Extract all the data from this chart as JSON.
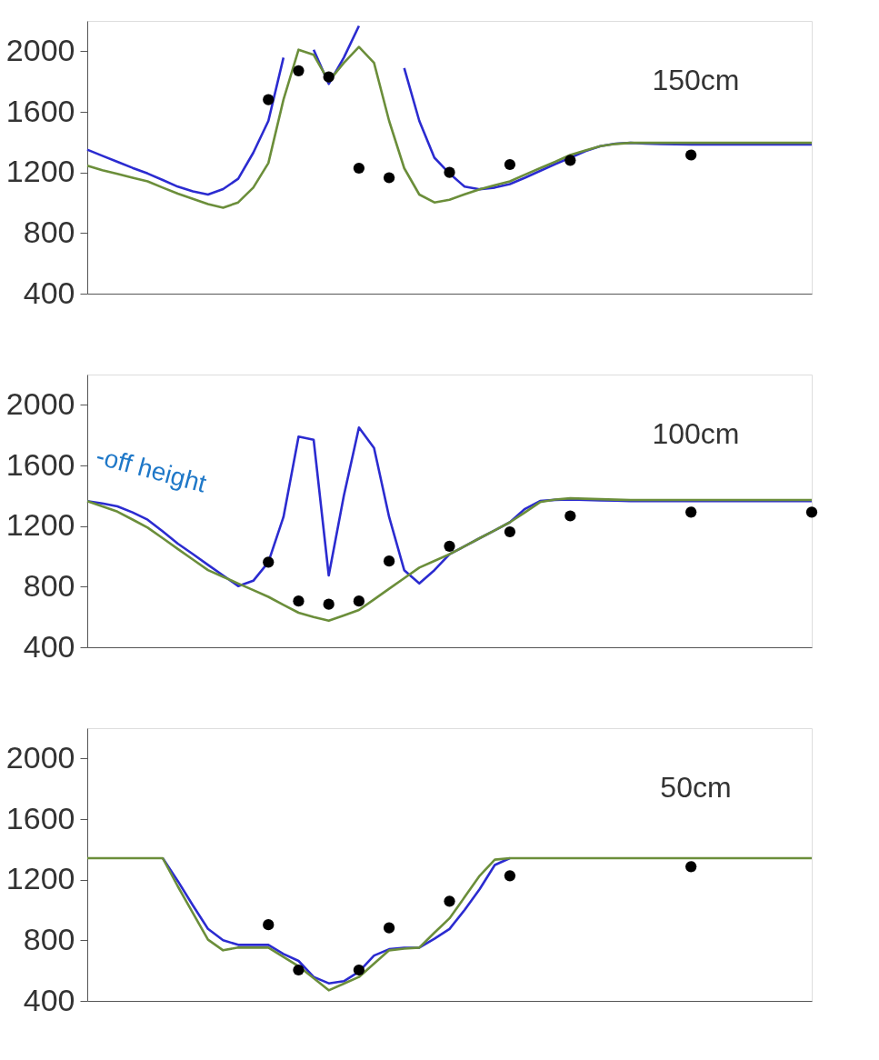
{
  "chart_data": [
    {
      "type": "line",
      "categories": [
        null,
        null,
        null,
        null,
        null,
        null,
        null,
        null,
        null,
        null,
        null,
        null,
        null,
        null,
        null,
        null,
        null,
        null,
        null,
        null,
        null,
        null,
        null,
        null,
        null,
        null,
        null,
        null,
        null,
        null,
        null,
        null,
        null,
        null,
        null,
        null,
        null,
        null,
        null,
        null,
        null,
        null,
        null,
        null,
        null,
        null,
        null,
        null,
        null
      ],
      "ylim": [
        400,
        2200
      ],
      "yticks": [
        400,
        800,
        1200,
        1600,
        2000
      ],
      "tick_labels": "y",
      "annotations": [
        "150cm"
      ],
      "series": [
        {
          "type": "line",
          "color": "#2b2bd0",
          "values": [
            1350,
            1310,
            1270,
            1230,
            1193,
            1150,
            1106,
            1075,
            1054,
            1090,
            1158,
            1330,
            1540,
            1958,
            null,
            2010,
            1784,
            1958,
            2167,
            null,
            null,
            1889,
            1540,
            1297,
            1193,
            1106,
            1089,
            1100,
            1123,
            1165,
            1210,
            1255,
            1297,
            1340,
            1374,
            1390,
            1395,
            1390,
            1388,
            1386,
            1384,
            1384,
            1384,
            1384,
            1384,
            1384,
            1384,
            1384,
            1384
          ]
        },
        {
          "type": "line",
          "color": "#6b8e3a",
          "values": [
            1245,
            1215,
            1190,
            1165,
            1141,
            1100,
            1060,
            1025,
            991,
            967,
            1002,
            1100,
            1262,
            1680,
            2010,
            1976,
            1802,
            1923,
            2028,
            1923,
            1540,
            1228,
            1054,
            1002,
            1019,
            1055,
            1089,
            1115,
            1141,
            1185,
            1228,
            1270,
            1315,
            1345,
            1374,
            1388,
            1395,
            1395,
            1395,
            1395,
            1395,
            1395,
            1395,
            1395,
            1395,
            1395,
            1395,
            1395,
            1395
          ]
        },
        {
          "type": "scatter",
          "color": "#000000",
          "marker": "circle",
          "values": [
            null,
            null,
            null,
            null,
            null,
            null,
            null,
            null,
            null,
            null,
            null,
            null,
            1680,
            null,
            1871,
            null,
            1830,
            null,
            1228,
            null,
            1165,
            null,
            null,
            null,
            1200,
            null,
            null,
            null,
            1252,
            null,
            null,
            null,
            1280,
            null,
            null,
            null,
            null,
            null,
            null,
            null,
            1315,
            null,
            null,
            null,
            null,
            null,
            null,
            null,
            null
          ]
        }
      ]
    },
    {
      "type": "line",
      "categories": [
        null,
        null,
        null,
        null,
        null,
        null,
        null,
        null,
        null,
        null,
        null,
        null,
        null,
        null,
        null,
        null,
        null,
        null,
        null,
        null,
        null,
        null,
        null,
        null,
        null,
        null,
        null,
        null,
        null,
        null,
        null,
        null,
        null,
        null,
        null,
        null,
        null,
        null,
        null,
        null,
        null,
        null,
        null,
        null,
        null,
        null,
        null,
        null,
        null
      ],
      "ylim": [
        400,
        2200
      ],
      "yticks": [
        400,
        800,
        1200,
        1600,
        2000
      ],
      "tick_labels": "y",
      "annotations": [
        "100cm",
        "-off height"
      ],
      "series": [
        {
          "type": "line",
          "color": "#2b2bd0",
          "values": [
            1365,
            1350,
            1330,
            1290,
            1242,
            1165,
            1084,
            1015,
            944,
            874,
            804,
            839,
            962,
            1260,
            1790,
            1769,
            874,
            1400,
            1850,
            1716,
            1260,
            909,
            821,
            909,
            1014,
            1067,
            1120,
            1172,
            1225,
            1313,
            1365,
            1373,
            1376,
            1372,
            1370,
            1368,
            1365,
            1365,
            1365,
            1365,
            1365,
            1365,
            1365,
            1365,
            1365,
            1365,
            1365,
            1365,
            1365
          ]
        },
        {
          "type": "line",
          "color": "#6b8e3a",
          "values": [
            1365,
            1330,
            1295,
            1243,
            1190,
            1120,
            1049,
            979,
            909,
            865,
            821,
            777,
            733,
            680,
            628,
            600,
            575,
            610,
            646,
            716,
            786,
            856,
            926,
            970,
            1014,
            1067,
            1120,
            1172,
            1225,
            1290,
            1358,
            1375,
            1383,
            1380,
            1377,
            1374,
            1372,
            1372,
            1372,
            1372,
            1372,
            1372,
            1372,
            1372,
            1372,
            1372,
            1372,
            1372,
            1372
          ]
        },
        {
          "type": "scatter",
          "color": "#000000",
          "marker": "circle",
          "values": [
            null,
            null,
            null,
            null,
            null,
            null,
            null,
            null,
            null,
            null,
            null,
            null,
            962,
            null,
            705,
            null,
            684,
            null,
            705,
            null,
            969,
            null,
            null,
            null,
            1067,
            null,
            null,
            null,
            1162,
            null,
            null,
            null,
            1267,
            null,
            null,
            null,
            null,
            null,
            null,
            null,
            1292,
            null,
            null,
            null,
            null,
            null,
            null,
            null,
            1292
          ]
        }
      ]
    },
    {
      "type": "line",
      "categories": [
        null,
        null,
        null,
        null,
        null,
        null,
        null,
        null,
        null,
        null,
        null,
        null,
        null,
        null,
        null,
        null,
        null,
        null,
        null,
        null,
        null,
        null,
        null,
        null,
        null,
        null,
        null,
        null,
        null,
        null,
        null,
        null,
        null,
        null,
        null,
        null,
        null,
        null,
        null,
        null,
        null,
        null,
        null,
        null,
        null,
        null,
        null,
        null,
        null
      ],
      "ylim": [
        400,
        2200
      ],
      "yticks": [
        400,
        800,
        1200,
        1600,
        2000
      ],
      "tick_labels": "y",
      "annotations": [
        "50cm"
      ],
      "series": [
        {
          "type": "line",
          "color": "#2b2bd0",
          "values": [
            null,
            null,
            null,
            null,
            null,
            1342,
            1191,
            1030,
            875,
            800,
            770,
            770,
            770,
            710,
            664,
            558,
            516,
            530,
            593,
            699,
            741,
            750,
            752,
            810,
            875,
            1000,
            1138,
            1297,
            1342,
            null,
            null,
            null,
            null,
            null,
            null,
            null,
            null,
            null,
            null,
            null,
            null,
            null,
            null,
            null,
            null,
            null,
            null,
            null,
            null
          ]
        },
        {
          "type": "line",
          "color": "#6b8e3a",
          "values": [
            1342,
            1342,
            1342,
            1342,
            1342,
            1342,
            1156,
            980,
            804,
            734,
            752,
            752,
            752,
            690,
            629,
            550,
            470,
            514,
            558,
            646,
            734,
            745,
            752,
            850,
            945,
            1085,
            1226,
            1332,
            1342,
            1342,
            1342,
            1342,
            1342,
            1342,
            1342,
            1342,
            1342,
            1342,
            1342,
            1342,
            1342,
            1342,
            1342,
            1342,
            1342,
            1342,
            1342,
            1342,
            1342
          ]
        },
        {
          "type": "scatter",
          "color": "#000000",
          "marker": "circle",
          "values": [
            null,
            null,
            null,
            null,
            null,
            null,
            null,
            null,
            null,
            null,
            null,
            null,
            903,
            null,
            604,
            null,
            null,
            null,
            604,
            null,
            882,
            null,
            null,
            null,
            1058,
            null,
            null,
            null,
            1226,
            null,
            null,
            null,
            null,
            null,
            null,
            null,
            null,
            null,
            null,
            null,
            1286,
            null,
            null,
            null,
            null,
            null,
            null,
            null,
            null
          ]
        }
      ]
    }
  ]
}
